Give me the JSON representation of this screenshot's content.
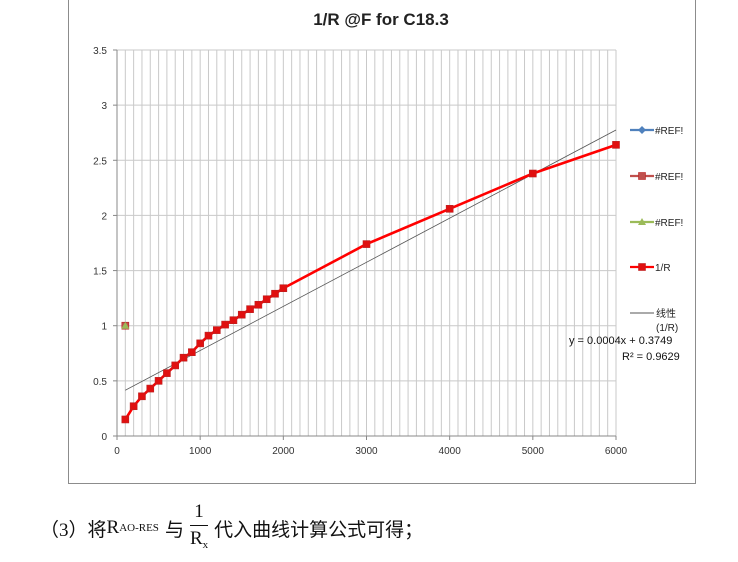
{
  "chart_data": {
    "type": "line",
    "title": "1/R @F for C18.3",
    "xlabel": "",
    "ylabel": "",
    "xlim": [
      0,
      6000
    ],
    "ylim": [
      0,
      3.5
    ],
    "x_ticks": [
      "0",
      "1000",
      "2000",
      "3000",
      "4000",
      "5000",
      "6000"
    ],
    "y_ticks": [
      "0",
      "0.5",
      "1",
      "1.5",
      "2",
      "2.5",
      "3",
      "3.5"
    ],
    "grid": true,
    "legend_position": "right",
    "series": [
      {
        "name": "#REF!",
        "color": "#4f81bd",
        "marker": "diamond",
        "x": [
          100
        ],
        "y": [
          1.0
        ]
      },
      {
        "name": "#REF!",
        "color": "#c0504d",
        "marker": "square",
        "x": [
          100
        ],
        "y": [
          1.0
        ]
      },
      {
        "name": "#REF!",
        "color": "#9bbb59",
        "marker": "triangle",
        "x": [
          100
        ],
        "y": [
          1.0
        ]
      },
      {
        "name": "1/R",
        "color": "#ff0000",
        "marker": "square",
        "x": [
          100,
          200,
          300,
          400,
          500,
          600,
          700,
          800,
          900,
          1000,
          1100,
          1200,
          1300,
          1400,
          1500,
          1600,
          1700,
          1800,
          1900,
          2000,
          3000,
          4000,
          5000,
          6000
        ],
        "y": [
          0.15,
          0.27,
          0.36,
          0.43,
          0.5,
          0.57,
          0.64,
          0.71,
          0.76,
          0.84,
          0.91,
          0.96,
          1.01,
          1.05,
          1.1,
          1.15,
          1.19,
          1.24,
          1.29,
          1.34,
          1.74,
          2.06,
          2.38,
          2.64
        ]
      }
    ],
    "trendline": {
      "name": "线性 (1/R)",
      "color": "#555555",
      "slope": 0.0004,
      "intercept": 0.3749,
      "x_range": [
        100,
        6000
      ],
      "equation_label": "y = 0.0004x + 0.3749",
      "r2_label": "R² = 0.9629"
    }
  },
  "caption": {
    "prefix": "（3）将",
    "r_symbol": "R",
    "r_subscript": "AO-RES",
    "middle": "与",
    "frac_num": "1",
    "frac_den_symbol": "R",
    "frac_den_subscript": "x",
    "suffix": "代入曲线计算公式可得；"
  }
}
